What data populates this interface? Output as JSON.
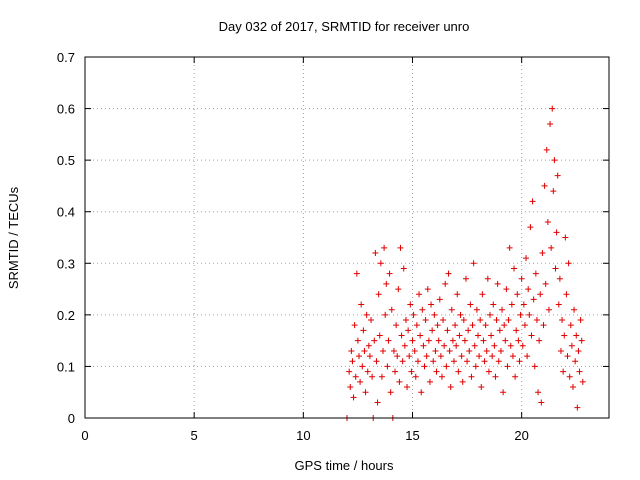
{
  "chart_data": {
    "type": "scatter",
    "title": "Day 032 of 2017, SRMTID for receiver unro",
    "xlabel": "GPS time / hours",
    "ylabel": "SRMTID / TECUs",
    "xlim": [
      0,
      24
    ],
    "ylim": [
      0,
      0.7
    ],
    "xticks": [
      0,
      5,
      10,
      15,
      20
    ],
    "xtick_labels": [
      "0",
      "5",
      "10",
      "15",
      "20"
    ],
    "yticks": [
      0,
      0.1,
      0.2,
      0.3,
      0.4,
      0.5,
      0.6,
      0.7
    ],
    "ytick_labels": [
      "0",
      "0.1",
      "0.2",
      "0.3",
      "0.4",
      "0.5",
      "0.6",
      "0.7"
    ],
    "grid": true,
    "marker": "+",
    "color": "#e00000",
    "series": [
      {
        "name": "SRMTID",
        "points": [
          [
            12.0,
            0.0
          ],
          [
            12.1,
            0.09
          ],
          [
            12.15,
            0.06
          ],
          [
            12.2,
            0.13
          ],
          [
            12.25,
            0.11
          ],
          [
            12.3,
            0.04
          ],
          [
            12.35,
            0.18
          ],
          [
            12.4,
            0.08
          ],
          [
            12.45,
            0.28
          ],
          [
            12.5,
            0.15
          ],
          [
            12.55,
            0.12
          ],
          [
            12.6,
            0.07
          ],
          [
            12.65,
            0.22
          ],
          [
            12.7,
            0.1
          ],
          [
            12.75,
            0.17
          ],
          [
            12.8,
            0.13
          ],
          [
            12.85,
            0.05
          ],
          [
            12.9,
            0.2
          ],
          [
            12.95,
            0.09
          ],
          [
            13.0,
            0.14
          ],
          [
            13.05,
            0.12
          ],
          [
            13.1,
            0.19
          ],
          [
            13.15,
            0.08
          ],
          [
            13.2,
            0.0
          ],
          [
            13.25,
            0.15
          ],
          [
            13.3,
            0.32
          ],
          [
            13.35,
            0.11
          ],
          [
            13.4,
            0.03
          ],
          [
            13.45,
            0.24
          ],
          [
            13.5,
            0.16
          ],
          [
            13.55,
            0.3
          ],
          [
            13.6,
            0.08
          ],
          [
            13.65,
            0.13
          ],
          [
            13.7,
            0.33
          ],
          [
            13.75,
            0.2
          ],
          [
            13.8,
            0.26
          ],
          [
            13.85,
            0.1
          ],
          [
            13.9,
            0.15
          ],
          [
            13.95,
            0.28
          ],
          [
            14.0,
            0.05
          ],
          [
            14.05,
            0.21
          ],
          [
            14.1,
            0.0
          ],
          [
            14.15,
            0.13
          ],
          [
            14.2,
            0.09
          ],
          [
            14.25,
            0.18
          ],
          [
            14.3,
            0.12
          ],
          [
            14.35,
            0.25
          ],
          [
            14.4,
            0.07
          ],
          [
            14.45,
            0.33
          ],
          [
            14.5,
            0.16
          ],
          [
            14.55,
            0.11
          ],
          [
            14.6,
            0.29
          ],
          [
            14.65,
            0.14
          ],
          [
            14.7,
            0.19
          ],
          [
            14.75,
            0.06
          ],
          [
            14.8,
            0.17
          ],
          [
            14.85,
            0.12
          ],
          [
            14.9,
            0.22
          ],
          [
            14.95,
            0.09
          ],
          [
            15.0,
            0.15
          ],
          [
            15.05,
            0.2
          ],
          [
            15.1,
            0.13
          ],
          [
            15.15,
            0.08
          ],
          [
            15.2,
            0.18
          ],
          [
            15.25,
            0.11
          ],
          [
            15.3,
            0.24
          ],
          [
            15.35,
            0.16
          ],
          [
            15.4,
            0.05
          ],
          [
            15.45,
            0.21
          ],
          [
            15.5,
            0.14
          ],
          [
            15.55,
            0.1
          ],
          [
            15.6,
            0.19
          ],
          [
            15.65,
            0.12
          ],
          [
            15.7,
            0.25
          ],
          [
            15.75,
            0.15
          ],
          [
            15.8,
            0.07
          ],
          [
            15.85,
            0.22
          ],
          [
            15.9,
            0.17
          ],
          [
            15.95,
            0.11
          ],
          [
            16.0,
            0.2
          ],
          [
            16.05,
            0.13
          ],
          [
            16.1,
            0.09
          ],
          [
            16.15,
            0.18
          ],
          [
            16.2,
            0.15
          ],
          [
            16.25,
            0.23
          ],
          [
            16.3,
            0.12
          ],
          [
            16.35,
            0.08
          ],
          [
            16.4,
            0.19
          ],
          [
            16.45,
            0.14
          ],
          [
            16.5,
            0.26
          ],
          [
            16.55,
            0.1
          ],
          [
            16.6,
            0.17
          ],
          [
            16.65,
            0.28
          ],
          [
            16.7,
            0.13
          ],
          [
            16.75,
            0.06
          ],
          [
            16.8,
            0.21
          ],
          [
            16.85,
            0.15
          ],
          [
            16.9,
            0.11
          ],
          [
            16.95,
            0.18
          ],
          [
            17.0,
            0.14
          ],
          [
            17.05,
            0.24
          ],
          [
            17.1,
            0.09
          ],
          [
            17.15,
            0.16
          ],
          [
            17.2,
            0.2
          ],
          [
            17.25,
            0.12
          ],
          [
            17.3,
            0.07
          ],
          [
            17.35,
            0.19
          ],
          [
            17.4,
            0.15
          ],
          [
            17.45,
            0.27
          ],
          [
            17.5,
            0.11
          ],
          [
            17.55,
            0.17
          ],
          [
            17.6,
            0.13
          ],
          [
            17.65,
            0.22
          ],
          [
            17.7,
            0.08
          ],
          [
            17.75,
            0.18
          ],
          [
            17.8,
            0.3
          ],
          [
            17.85,
            0.14
          ],
          [
            17.9,
            0.1
          ],
          [
            17.95,
            0.21
          ],
          [
            18.0,
            0.16
          ],
          [
            18.05,
            0.12
          ],
          [
            18.1,
            0.19
          ],
          [
            18.15,
            0.06
          ],
          [
            18.2,
            0.24
          ],
          [
            18.25,
            0.15
          ],
          [
            18.3,
            0.11
          ],
          [
            18.35,
            0.18
          ],
          [
            18.4,
            0.13
          ],
          [
            18.45,
            0.27
          ],
          [
            18.5,
            0.09
          ],
          [
            18.55,
            0.2
          ],
          [
            18.6,
            0.16
          ],
          [
            18.65,
            0.12
          ],
          [
            18.7,
            0.22
          ],
          [
            18.75,
            0.14
          ],
          [
            18.8,
            0.08
          ],
          [
            18.85,
            0.19
          ],
          [
            18.9,
            0.26
          ],
          [
            18.95,
            0.11
          ],
          [
            19.0,
            0.17
          ],
          [
            19.05,
            0.13
          ],
          [
            19.1,
            0.21
          ],
          [
            19.15,
            0.05
          ],
          [
            19.2,
            0.18
          ],
          [
            19.25,
            0.15
          ],
          [
            19.3,
            0.25
          ],
          [
            19.35,
            0.1
          ],
          [
            19.4,
            0.19
          ],
          [
            19.45,
            0.33
          ],
          [
            19.5,
            0.14
          ],
          [
            19.55,
            0.22
          ],
          [
            19.6,
            0.12
          ],
          [
            19.65,
            0.29
          ],
          [
            19.7,
            0.08
          ],
          [
            19.75,
            0.17
          ],
          [
            19.8,
            0.24
          ],
          [
            19.85,
            0.15
          ],
          [
            19.9,
            0.11
          ],
          [
            19.95,
            0.2
          ],
          [
            20.0,
            0.27
          ],
          [
            20.05,
            0.14
          ],
          [
            20.1,
            0.22
          ],
          [
            20.15,
            0.18
          ],
          [
            20.2,
            0.31
          ],
          [
            20.25,
            0.12
          ],
          [
            20.3,
            0.25
          ],
          [
            20.35,
            0.2
          ],
          [
            20.4,
            0.37
          ],
          [
            20.45,
            0.16
          ],
          [
            20.5,
            0.42
          ],
          [
            20.55,
            0.23
          ],
          [
            20.6,
            0.1
          ],
          [
            20.65,
            0.28
          ],
          [
            20.7,
            0.19
          ],
          [
            20.75,
            0.05
          ],
          [
            20.8,
            0.15
          ],
          [
            20.85,
            0.24
          ],
          [
            20.9,
            0.03
          ],
          [
            20.95,
            0.32
          ],
          [
            21.0,
            0.18
          ],
          [
            21.05,
            0.45
          ],
          [
            21.1,
            0.26
          ],
          [
            21.15,
            0.52
          ],
          [
            21.2,
            0.38
          ],
          [
            21.25,
            0.21
          ],
          [
            21.3,
            0.57
          ],
          [
            21.35,
            0.33
          ],
          [
            21.4,
            0.6
          ],
          [
            21.45,
            0.44
          ],
          [
            21.5,
            0.5
          ],
          [
            21.55,
            0.29
          ],
          [
            21.6,
            0.36
          ],
          [
            21.65,
            0.47
          ],
          [
            21.7,
            0.22
          ],
          [
            21.75,
            0.27
          ],
          [
            21.8,
            0.13
          ],
          [
            21.85,
            0.19
          ],
          [
            21.9,
            0.09
          ],
          [
            21.95,
            0.16
          ],
          [
            22.0,
            0.35
          ],
          [
            22.05,
            0.24
          ],
          [
            22.1,
            0.12
          ],
          [
            22.15,
            0.3
          ],
          [
            22.2,
            0.08
          ],
          [
            22.25,
            0.18
          ],
          [
            22.3,
            0.14
          ],
          [
            22.35,
            0.06
          ],
          [
            22.4,
            0.21
          ],
          [
            22.45,
            0.11
          ],
          [
            22.5,
            0.16
          ],
          [
            22.55,
            0.02
          ],
          [
            22.6,
            0.13
          ],
          [
            22.65,
            0.09
          ],
          [
            22.7,
            0.19
          ],
          [
            22.75,
            0.15
          ],
          [
            22.8,
            0.07
          ]
        ]
      }
    ]
  }
}
